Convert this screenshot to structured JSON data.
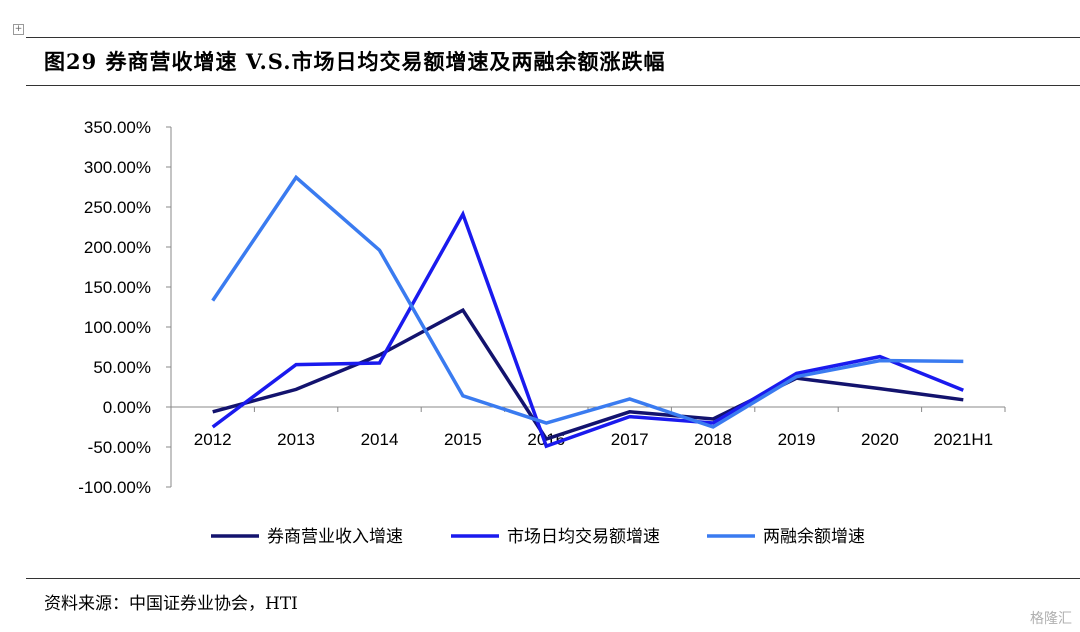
{
  "title": "图29 券商营收增速 V.S.市场日均交易额增速及两融余额涨跌幅",
  "source": "资料来源：中国证券业协会，HTI",
  "watermark": "格隆汇",
  "chart_data": {
    "type": "line",
    "categories": [
      "2012",
      "2013",
      "2014",
      "2015",
      "2016",
      "2017",
      "2018",
      "2019",
      "2020",
      "2021H1"
    ],
    "ylim": [
      -100,
      350
    ],
    "yticks": [
      -100,
      -50,
      0,
      50,
      100,
      150,
      200,
      250,
      300,
      350
    ],
    "ytick_labels": [
      "-100.00%",
      "-50.00%",
      "0.00%",
      "50.00%",
      "100.00%",
      "150.00%",
      "200.00%",
      "250.00%",
      "300.00%",
      "350.00%"
    ],
    "grid": false,
    "legend_position": "bottom",
    "series": [
      {
        "name": "券商营业收入增速",
        "color": "#13136e",
        "values": [
          -6,
          22,
          65,
          121,
          -40,
          -6,
          -15,
          36,
          23,
          9
        ]
      },
      {
        "name": "市场日均交易额增速",
        "color": "#1a1aee",
        "values": [
          -25,
          53,
          55,
          241,
          -49,
          -12,
          -20,
          42,
          63,
          21
        ]
      },
      {
        "name": "两融余额增速",
        "color": "#3a7bf0",
        "values": [
          133,
          287,
          196,
          14,
          -20,
          10,
          -25,
          38,
          58,
          57
        ]
      }
    ]
  }
}
